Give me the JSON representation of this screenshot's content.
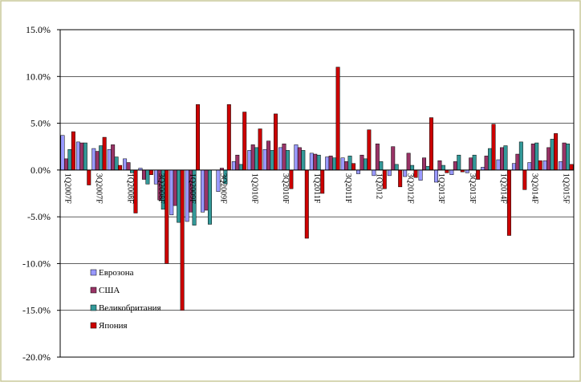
{
  "chart_data": {
    "type": "bar",
    "categories": [
      "1Q2007F",
      null,
      "3Q2007F",
      null,
      "1Q2008F",
      null,
      "3Q2008F",
      null,
      "1Q2009F",
      null,
      "3Q2009F",
      null,
      "1Q2010F",
      null,
      "3Q2010F",
      null,
      "1Q2011F",
      null,
      "3Q2011F",
      null,
      "1Q2012",
      null,
      "3Q2012F",
      null,
      "1Q2013F",
      null,
      "3Q2013F",
      null,
      "1Q2014F",
      null,
      "3Q2014F",
      null,
      "1Q2015F"
    ],
    "series": [
      {
        "name": "Еврозона",
        "color": "#9999ff",
        "values": [
          3.7,
          3.0,
          2.3,
          2.2,
          1.2,
          0.2,
          -1.5,
          -4.8,
          -5.5,
          -4.5,
          -2.3,
          0.9,
          2.1,
          2.2,
          2.4,
          2.7,
          1.8,
          1.4,
          1.3,
          -0.4,
          -0.6,
          -0.6,
          -0.7,
          -1.1,
          -1.3,
          -0.5,
          -0.3,
          0.3,
          1.1,
          0.7,
          0.8,
          1.0,
          0.9
        ]
      },
      {
        "name": "США",
        "color": "#993366",
        "values": [
          1.2,
          2.9,
          2.0,
          2.7,
          0.8,
          -1.0,
          -3.2,
          -3.8,
          -4.5,
          -4.3,
          0.2,
          1.6,
          2.7,
          3.1,
          2.8,
          2.4,
          1.7,
          1.5,
          0.9,
          1.6,
          2.8,
          2.5,
          1.8,
          1.3,
          1.0,
          0.9,
          1.3,
          1.5,
          2.4,
          1.7,
          2.8,
          2.4,
          2.9
        ]
      },
      {
        "name": "Великобритания",
        "color": "#339999",
        "values": [
          2.2,
          2.9,
          2.6,
          1.4,
          -0.3,
          -1.5,
          -4.2,
          -5.6,
          -5.9,
          -5.8,
          -1.5,
          0.6,
          2.4,
          2.1,
          2.1,
          2.1,
          1.6,
          1.3,
          1.5,
          1.2,
          0.9,
          0.6,
          0.5,
          0.4,
          0.5,
          1.6,
          1.6,
          2.3,
          2.6,
          3.0,
          2.9,
          3.3,
          2.8
        ]
      },
      {
        "name": "Япония",
        "color": "#cc0000",
        "values": [
          4.1,
          -1.6,
          3.5,
          0.5,
          -4.6,
          -0.5,
          -10.0,
          -15.0,
          7.0,
          0.0,
          7.0,
          6.2,
          4.4,
          6.0,
          -2.0,
          -7.3,
          -2.5,
          11.0,
          0.7,
          4.3,
          -2.0,
          -1.8,
          -0.8,
          5.6,
          -0.3,
          -0.2,
          -1.0,
          4.9,
          -7.0,
          -2.1,
          1.0,
          3.9,
          0.6
        ]
      }
    ],
    "ylim": [
      -20,
      15
    ],
    "yticks": [
      {
        "value": -20,
        "label": "-20.0%"
      },
      {
        "value": -15,
        "label": "-15.0%"
      },
      {
        "value": -10,
        "label": "-10.0%"
      },
      {
        "value": -5,
        "label": "-5.0%"
      },
      {
        "value": 0,
        "label": "0.0%"
      },
      {
        "value": 5,
        "label": "5.0%"
      },
      {
        "value": 10,
        "label": "10.0%"
      },
      {
        "value": 15,
        "label": "15.0%"
      }
    ],
    "grid": true
  }
}
